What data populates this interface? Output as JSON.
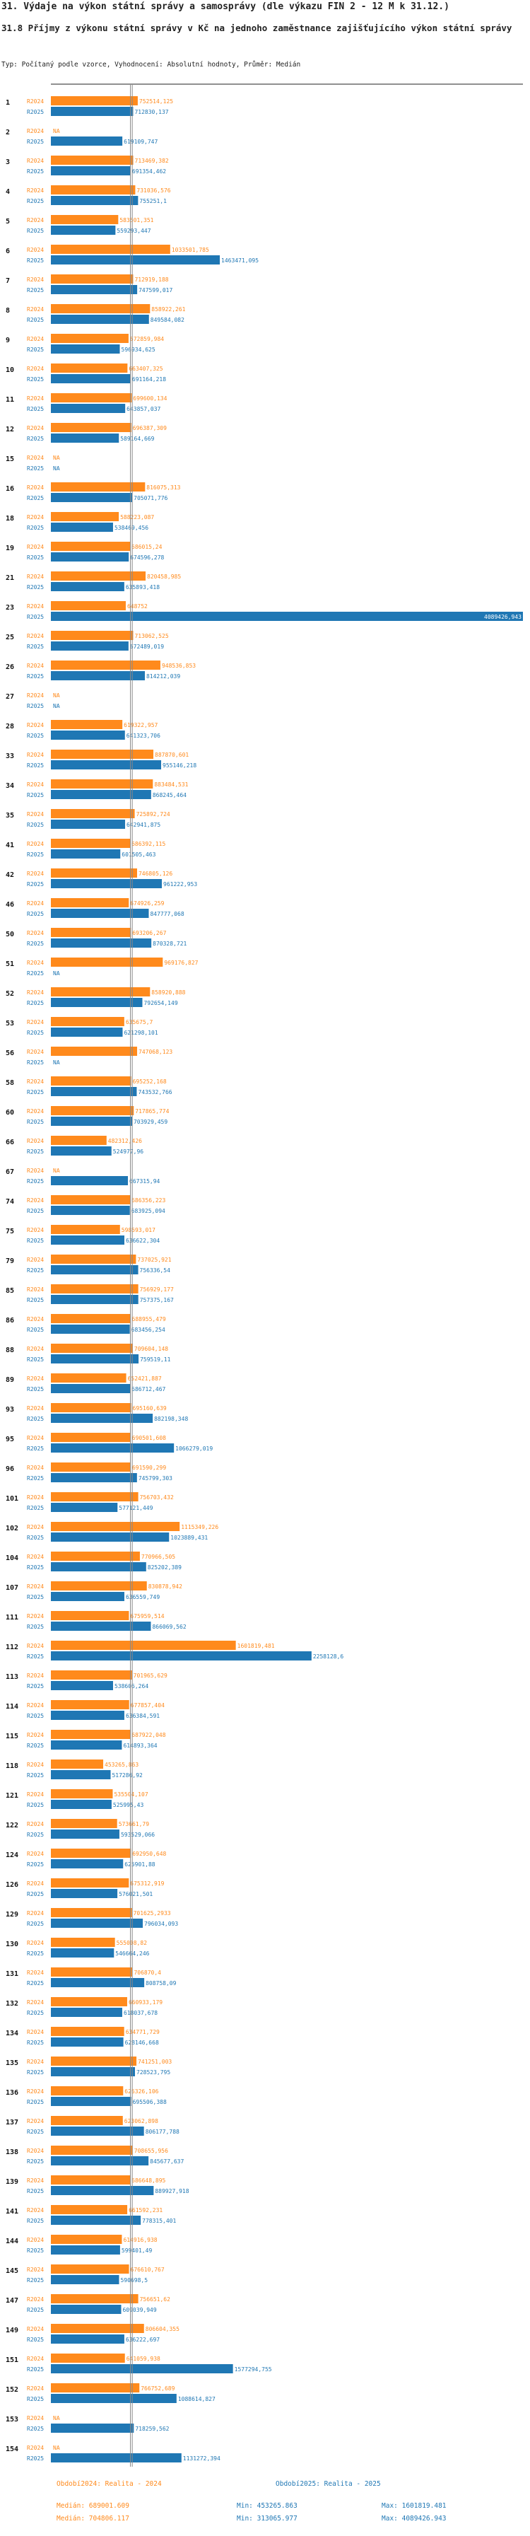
{
  "page": {
    "title": "31. Výdaje na výkon státní správy a samosprávy (dle výkazu FIN 2 - 12 M k 31.12.)",
    "subtitle": "31.8 Příjmy z výkonu státní správy v Kč na jednoho zaměstnance zajišťujícího výkon státní správy",
    "type_line": "Typ: Počítaný podle vzorce, Vyhodnocení: Absolutní hodnoty, Průměr: Medián"
  },
  "legend": {
    "s1_label": "Období2024: Realita - 2024",
    "s2_label": "Období2025: Realita - 2025",
    "s1_median": "Medián: 689001.609",
    "s2_median": "Medián: 704806.117",
    "s1_min": "Min: 453265.863",
    "s2_min": "Min: 313065.977",
    "s1_max": "Max: 1601819.481",
    "s2_max": "Max: 4089426.943"
  },
  "colors": {
    "s2024": "#ff8a1c",
    "s2025": "#1f77b4",
    "median": "#888888",
    "axis": "#222222"
  },
  "chart_data": {
    "type": "bar",
    "orientation": "horizontal",
    "xlim": [
      0,
      4089426.943
    ],
    "median_2024": 689001.609,
    "median_2025": 704806.117,
    "series": [
      {
        "name": "R2024",
        "values": [
          752514.125,
          null,
          713469.382,
          731036.576,
          583501.351,
          1033501.785,
          712919.188,
          858922.261,
          672859.984,
          663407.325,
          699600.134,
          696387.309,
          null,
          816075.313,
          588223.087,
          686015.24,
          820458.985,
          648752,
          713062.525,
          948536.853,
          null,
          619322.957,
          887870.601,
          883484.531,
          725892.724,
          686392.115,
          746805.126,
          674926.259,
          693206.267,
          969176.827,
          858920.888,
          635675.7,
          747068.123,
          695252.168,
          717865.774,
          482312.426,
          null,
          686356.223,
          598593.017,
          737025.921,
          756929.177,
          688955.479,
          709604.148,
          652421.887,
          695160.639,
          690501.608,
          691590.299,
          756703.432,
          1115349.226,
          770966.505,
          830878.942,
          675959.514,
          1601819.481,
          701965.629,
          677857.404,
          687922.048,
          453265.863,
          535504.107,
          573661.79,
          692950.648,
          675312.919,
          701625.2933,
          555008.82,
          706870.4,
          660933.179,
          634771.729,
          741251.003,
          626326.106,
          623062.898,
          708655.956,
          686648.895,
          661592.231,
          614916.938,
          676610.767,
          756651.62,
          806604.355,
          641059.938,
          766752.689,
          null,
          null
        ]
      },
      {
        "name": "R2025",
        "values": [
          712830.137,
          619109.747,
          691354.462,
          755251.1,
          559293.447,
          1463471.095,
          747599.017,
          849584.082,
          596934.625,
          691164.218,
          643857.037,
          589164.669,
          null,
          705071.776,
          538469.456,
          674596.278,
          635893.418,
          4089426.943,
          672489.019,
          814212.039,
          null,
          641323.706,
          955146.218,
          868245.464,
          642941.875,
          601505.463,
          961222.953,
          847777.068,
          870328.721,
          null,
          792654.149,
          621298.101,
          null,
          743532.766,
          703929.459,
          524977.96,
          667315.94,
          683925.094,
          636622.304,
          756336.54,
          757375.167,
          683456.254,
          759519.11,
          686712.467,
          882198.348,
          1066279.019,
          745799.303,
          577121.449,
          1023889.431,
          825202.389,
          636559.749,
          866069.562,
          2258128.6,
          538606.264,
          636384.591,
          614893.364,
          517286.92,
          525995.43,
          593529.066,
          625901.88,
          576021.501,
          796034.093,
          546664.246,
          808758.09,
          618037.678,
          628146.668,
          728523.795,
          695506.388,
          806177.788,
          845677.637,
          889927.918,
          778315.401,
          599401.49,
          590698.5,
          609039.949,
          636222.697,
          1577294.755,
          1088614.827,
          718259.562,
          1131272.394
        ]
      }
    ],
    "categories": [
      "1",
      "2",
      "3",
      "4",
      "5",
      "6",
      "7",
      "8",
      "9",
      "10",
      "11",
      "12",
      "15",
      "16",
      "18",
      "19",
      "21",
      "23",
      "25",
      "26",
      "27",
      "28",
      "33",
      "34",
      "35",
      "41",
      "42",
      "46",
      "50",
      "51",
      "52",
      "53",
      "56",
      "58",
      "60",
      "66",
      "67",
      "74",
      "75",
      "79",
      "85",
      "86",
      "88",
      "89",
      "93",
      "95",
      "96",
      "101",
      "102",
      "104",
      "107",
      "111",
      "112",
      "113",
      "114",
      "115",
      "118",
      "121",
      "122",
      "124",
      "126",
      "129",
      "130",
      "131",
      "132",
      "134",
      "135",
      "136",
      "137",
      "138",
      "139",
      "141",
      "144",
      "145",
      "147",
      "149",
      "151",
      "152",
      "153",
      "154"
    ],
    "value_labels_2024": [
      "752514,125",
      "",
      "713469,382",
      "731036,576",
      "583501,351",
      "1033501,785",
      "712919,188",
      "858922,261",
      "672859,984",
      "663407,325",
      "699600,134",
      "696387,309",
      "",
      "816075,313",
      "588223,087",
      "686015,24",
      "820458,985",
      "648752",
      "713062,525",
      "948536,853",
      "",
      "619322,957",
      "887870,601",
      "883484,531",
      "725892,724",
      "686392,115",
      "746805,126",
      "674926,259",
      "693206,267",
      "969176,827",
      "858920,888",
      "635675,7",
      "747068,123",
      "695252,168",
      "717865,774",
      "482312,426",
      "",
      "686356,223",
      "598593,017",
      "737025,921",
      "756929,177",
      "688955,479",
      "709604,148",
      "652421,887",
      "695160,639",
      "690501,608",
      "691590,299",
      "756703,432",
      "1115349,226",
      "770966,505",
      "830878,942",
      "675959,514",
      "1601819,481",
      "701965,629",
      "677857,404",
      "687922,048",
      "453265,863",
      "535504,107",
      "573661,79",
      "692950,648",
      "675312,919",
      "701625,2933",
      "555008,82",
      "706870,4",
      "660933,179",
      "634771,729",
      "741251,003",
      "626326,106",
      "623062,898",
      "708655,956",
      "686648,895",
      "661592,231",
      "614916,938",
      "676610,767",
      "756651,62",
      "806604,355",
      "641059,938",
      "766752,689",
      "",
      ""
    ],
    "value_labels_2025": [
      "712830,137",
      "619109,747",
      "691354,462",
      "755251,1",
      "559293,447",
      "1463471,095",
      "747599,017",
      "849584,082",
      "596934,625",
      "691164,218",
      "643857,037",
      "589164,669",
      "",
      "705071,776",
      "538469,456",
      "674596,278",
      "635893,418",
      "4089426,943",
      "672489,019",
      "814212,039",
      "",
      "641323,706",
      "955146,218",
      "868245,464",
      "642941,875",
      "601505,463",
      "961222,953",
      "847777,068",
      "870328,721",
      "",
      "792654,149",
      "621298,101",
      "",
      "743532,766",
      "703929,459",
      "524977,96",
      "667315,94",
      "683925,094",
      "636622,304",
      "756336,54",
      "757375,167",
      "683456,254",
      "759519,11",
      "686712,467",
      "882198,348",
      "1066279,019",
      "745799,303",
      "577121,449",
      "1023889,431",
      "825202,389",
      "636559,749",
      "866069,562",
      "2258128,6",
      "538606,264",
      "636384,591",
      "614893,364",
      "517286,92",
      "525995,43",
      "593529,066",
      "625901,88",
      "576021,501",
      "796034,093",
      "546664,246",
      "808758,09",
      "618037,678",
      "628146,668",
      "728523,795",
      "695506,388",
      "806177,788",
      "845677,637",
      "889927,918",
      "778315,401",
      "599401,49",
      "590698,5",
      "609039,949",
      "636222,697",
      "1577294,755",
      "1088614,827",
      "718259,562",
      "1131272,394"
    ],
    "na_label": "NA",
    "row_label_2024": "R2024",
    "row_label_2025": "R2025"
  }
}
